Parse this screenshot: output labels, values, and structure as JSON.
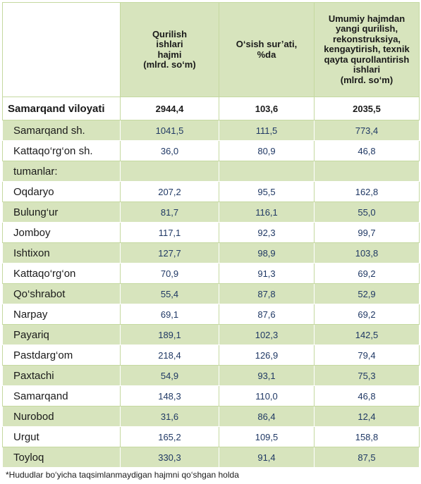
{
  "table": {
    "header": [
      [
        "Qurilish",
        "ishlari",
        "hajmi",
        "(mlrd. so‘m)"
      ],
      [
        "O‘sish sur’ati,",
        "%da"
      ],
      [
        "Umumiy hajmdan",
        "yangi qurilish,",
        "rekonstruksiya,",
        "kengaytirish, texnik",
        "qayta qurollantirish",
        "ishlari",
        "(mlrd. so‘m)"
      ]
    ],
    "rows": [
      {
        "name": "Samarqand viloyati",
        "values": [
          "2944,4",
          "103,6",
          "2035,5"
        ]
      },
      {
        "name": "Samarqand sh.",
        "values": [
          "1041,5",
          "111,5",
          "773,4"
        ]
      },
      {
        "name": "Kattaqo‘rg‘on sh.",
        "values": [
          "36,0",
          "80,9",
          "46,8"
        ]
      },
      {
        "name": "tumanlar:"
      },
      {
        "name": "Oqdaryo",
        "values": [
          "207,2",
          "95,5",
          "162,8"
        ]
      },
      {
        "name": "Bulung‘ur",
        "values": [
          "81,7",
          "116,1",
          "55,0"
        ]
      },
      {
        "name": "Jomboy",
        "values": [
          "117,1",
          "92,3",
          "99,7"
        ]
      },
      {
        "name": "Ishtixon",
        "values": [
          "127,7",
          "98,9",
          "103,8"
        ]
      },
      {
        "name": "Kattaqo‘rg‘on",
        "values": [
          "70,9",
          "91,3",
          "69,2"
        ]
      },
      {
        "name": "Qo‘shrabot",
        "values": [
          "55,4",
          "87,8",
          "52,9"
        ]
      },
      {
        "name": "Narpay",
        "values": [
          "69,1",
          "87,6",
          "69,2"
        ]
      },
      {
        "name": "Payariq",
        "values": [
          "189,1",
          "102,3",
          "142,5"
        ]
      },
      {
        "name": "Pastdarg‘om",
        "values": [
          "218,4",
          "126,9",
          "79,4"
        ]
      },
      {
        "name": "Paxtachi",
        "values": [
          "54,9",
          "93,1",
          "75,3"
        ]
      },
      {
        "name": "Samarqand",
        "values": [
          "148,3",
          "110,0",
          "46,8"
        ]
      },
      {
        "name": "Nurobod",
        "values": [
          "31,6",
          "86,4",
          "12,4"
        ]
      },
      {
        "name": "Urgut",
        "values": [
          "165,2",
          "109,5",
          "158,8"
        ]
      },
      {
        "name": "Toyloq",
        "values": [
          "330,3",
          "91,4",
          "87,5"
        ]
      }
    ],
    "footnote": "*Hududlar bo‘yicha taqsimlanmaydigan hajmni qo‘shgan holda"
  }
}
